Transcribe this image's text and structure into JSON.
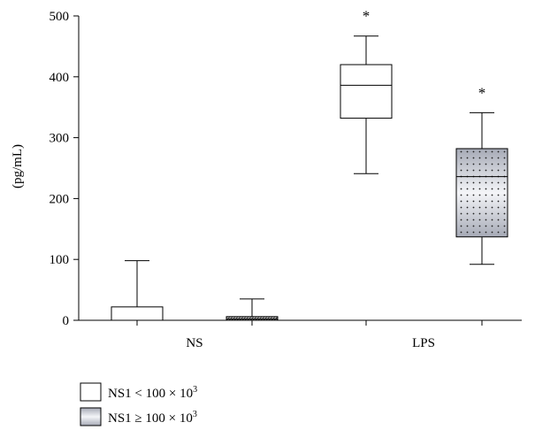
{
  "chart_data": {
    "type": "box",
    "ylabel": "(pg/mL)",
    "ylim": [
      0,
      500
    ],
    "yticks": [
      "0",
      "100",
      "200",
      "300",
      "400",
      "500"
    ],
    "categories": [
      "NS",
      "LPS"
    ],
    "series": [
      {
        "name": "NS1 < 100 × 10³",
        "legend_prefix": "NS1 < 100 × 10",
        "legend_sup": "3",
        "fill": "white",
        "boxes": [
          {
            "category": "NS",
            "min": 0,
            "q1": 0,
            "median": 0,
            "q3": 22,
            "max": 98,
            "annotation": ""
          },
          {
            "category": "LPS",
            "min": 241,
            "q1": 332,
            "median": 386,
            "q3": 420,
            "max": 467,
            "annotation": "*"
          }
        ]
      },
      {
        "name": "NS1 ≥ 100 × 10³",
        "legend_prefix": "NS1 ≥ 100 × 10",
        "legend_sup": "3",
        "fill": "gradient-dotted",
        "boxes": [
          {
            "category": "NS",
            "min": 0,
            "q1": 0,
            "median": 2,
            "q3": 6,
            "max": 35,
            "annotation": ""
          },
          {
            "category": "LPS",
            "min": 92,
            "q1": 137,
            "median": 236,
            "q3": 282,
            "max": 341,
            "annotation": "*"
          }
        ]
      }
    ],
    "colors": {
      "gradient_dark": "#a6aab6",
      "gradient_light": "#f4f5f8",
      "dots": "#222222",
      "line": "#000000"
    }
  }
}
